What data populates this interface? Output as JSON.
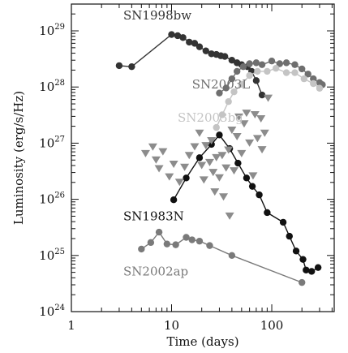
{
  "chart_data": {
    "type": "scatter",
    "title": "",
    "xlabel": "Time (days)",
    "ylabel": "Luminosity (erg/s/Hz)",
    "xscale": "log",
    "yscale": "log",
    "xlim": [
      1,
      420
    ],
    "ylim": [
      1e+24,
      3e+29
    ],
    "x_ticks": [
      {
        "value": 1,
        "label": "1"
      },
      {
        "value": 10,
        "label": "10"
      },
      {
        "value": 100,
        "label": "100"
      }
    ],
    "y_ticks": [
      {
        "value": 1e+24,
        "base": "10",
        "exp": "24"
      },
      {
        "value": 1e+25,
        "base": "10",
        "exp": "25"
      },
      {
        "value": 1e+26,
        "base": "10",
        "exp": "26"
      },
      {
        "value": 1e+27,
        "base": "10",
        "exp": "27"
      },
      {
        "value": 1e+28,
        "base": "10",
        "exp": "28"
      },
      {
        "value": 1e+29,
        "base": "10",
        "exp": "29"
      }
    ],
    "grid": false,
    "series": [
      {
        "name": "SN1998bw",
        "color": "#333333",
        "marker": "circle",
        "line": true,
        "label_at": [
          3.3,
          1.6e+29
        ],
        "points": [
          [
            3,
            2.4e+28
          ],
          [
            4,
            2.3e+28
          ],
          [
            10,
            8.6e+28
          ],
          [
            11.5,
            8.2e+28
          ],
          [
            13,
            7.6e+28
          ],
          [
            15,
            6.3e+28
          ],
          [
            17,
            6e+28
          ],
          [
            19,
            5.2e+28
          ],
          [
            22,
            4.4e+28
          ],
          [
            25,
            3.9e+28
          ],
          [
            28,
            3.8e+28
          ],
          [
            31,
            3.6e+28
          ],
          [
            34,
            3.5e+28
          ],
          [
            40,
            3e+28
          ],
          [
            45,
            2.7e+28
          ],
          [
            50,
            2.5e+28
          ],
          [
            57,
            2.3e+28
          ],
          [
            63,
            1.9e+28
          ],
          [
            70,
            1.3e+28
          ],
          [
            80,
            7.2e+27
          ]
        ]
      },
      {
        "name": "SN2003L",
        "color": "#6f6f6f",
        "marker": "circle",
        "line": true,
        "label_at": [
          16,
          9.5e+27
        ],
        "points": [
          [
            30,
            7.8e+27
          ],
          [
            35,
            9.6e+27
          ],
          [
            40,
            1.4e+28
          ],
          [
            45,
            1.9e+28
          ],
          [
            52,
            2.3e+28
          ],
          [
            60,
            2.6e+28
          ],
          [
            70,
            2.7e+28
          ],
          [
            80,
            2.5e+28
          ],
          [
            100,
            2.9e+28
          ],
          [
            120,
            2.6e+28
          ],
          [
            140,
            2.7e+28
          ],
          [
            170,
            2.5e+28
          ],
          [
            200,
            2.1e+28
          ],
          [
            230,
            1.7e+28
          ],
          [
            260,
            1.4e+28
          ],
          [
            300,
            1.2e+28
          ],
          [
            320,
            1.1e+28
          ]
        ]
      },
      {
        "name": "SN2003bg",
        "color": "#c4c4c4",
        "marker": "circle",
        "line": true,
        "label_at": [
          11.5,
          2.4e+27
        ],
        "points": [
          [
            28,
            1.9e+27
          ],
          [
            32,
            3.2e+27
          ],
          [
            37,
            5.5e+27
          ],
          [
            42,
            8.2e+27
          ],
          [
            50,
            1.12e+28
          ],
          [
            60,
            1.6e+28
          ],
          [
            72,
            1.9e+28
          ],
          [
            90,
            1.9e+28
          ],
          [
            110,
            2.15e+28
          ],
          [
            140,
            1.8e+28
          ],
          [
            170,
            1.8e+28
          ],
          [
            210,
            1.4e+28
          ],
          [
            260,
            1.15e+28
          ],
          [
            300,
            9.5e+27
          ]
        ]
      },
      {
        "name": "SN1983N",
        "color": "#111111",
        "marker": "circle",
        "line": true,
        "label_at": [
          3.3,
          4.2e+25
        ],
        "points": [
          [
            10.5,
            9.8e+25
          ],
          [
            14,
            2.4e+26
          ],
          [
            19,
            5.5e+26
          ],
          [
            25,
            9.5e+26
          ],
          [
            30,
            1.4e+27
          ],
          [
            38,
            8e+26
          ],
          [
            46,
            4.4e+26
          ],
          [
            56,
            2.4e+26
          ],
          [
            64,
            1.7e+26
          ],
          [
            75,
            1.2e+26
          ],
          [
            90,
            5.8e+25
          ],
          [
            130,
            3.9e+25
          ],
          [
            150,
            2.2e+25
          ],
          [
            175,
            1.2e+25
          ],
          [
            205,
            8.5e+24
          ],
          [
            220,
            5.5e+24
          ],
          [
            250,
            5.2e+24
          ],
          [
            290,
            6.1e+24
          ]
        ]
      },
      {
        "name": "SN2002ap",
        "color": "#7a7a7a",
        "marker": "circle",
        "line": true,
        "label_at": [
          3.3,
          4.4e+24
        ],
        "points": [
          [
            5,
            1.3e+25
          ],
          [
            6.2,
            1.7e+25
          ],
          [
            7.5,
            2.6e+25
          ],
          [
            9,
            1.6e+25
          ],
          [
            11,
            1.55e+25
          ],
          [
            14,
            2.1e+25
          ],
          [
            16,
            1.9e+25
          ],
          [
            19,
            1.8e+25
          ],
          [
            24,
            1.5e+25
          ],
          [
            40,
            1e+25
          ],
          [
            200,
            3.3e+24
          ]
        ]
      },
      {
        "name": "",
        "color": "#8c8c8c",
        "marker": "triangle-down",
        "line": false,
        "points": [
          [
            5.5,
            6.5e+26
          ],
          [
            6.5,
            8.5e+26
          ],
          [
            7.0,
            5e+26
          ],
          [
            7.5,
            3.5e+26
          ],
          [
            8.2,
            7e+26
          ],
          [
            9.5,
            2.5e+26
          ],
          [
            10.5,
            4.2e+26
          ],
          [
            12,
            2e+26
          ],
          [
            13.5,
            3.7e+26
          ],
          [
            15,
            6e+26
          ],
          [
            17,
            8.6e+26
          ],
          [
            19,
            1.5e+27
          ],
          [
            20,
            4e+26
          ],
          [
            21,
            2.2e+26
          ],
          [
            22,
            9e+26
          ],
          [
            24,
            4.5e+26
          ],
          [
            25,
            1.1e+27
          ],
          [
            26,
            3e+26
          ],
          [
            27,
            1.35e+26
          ],
          [
            28,
            5.5e+26
          ],
          [
            30,
            2.4e+26
          ],
          [
            32,
            6e+26
          ],
          [
            33,
            1.1e+26
          ],
          [
            35,
            3.6e+26
          ],
          [
            37,
            7.5e+26
          ],
          [
            38,
            5e+25
          ],
          [
            40,
            1.7e+27
          ],
          [
            42,
            3.2e+26
          ],
          [
            45,
            1.3e+27
          ],
          [
            47,
            2.9e+27
          ],
          [
            50,
            6.5e+26
          ],
          [
            53,
            2.2e+27
          ],
          [
            56,
            3.4e+27
          ],
          [
            60,
            1e+27
          ],
          [
            65,
            2.6e+26
          ],
          [
            68,
            3.2e+27
          ],
          [
            72,
            1.2e+27
          ],
          [
            78,
            2.7e+27
          ],
          [
            80,
            7.6e+26
          ],
          [
            85,
            1.5e+27
          ],
          [
            92,
            6.3e+27
          ]
        ]
      }
    ]
  }
}
